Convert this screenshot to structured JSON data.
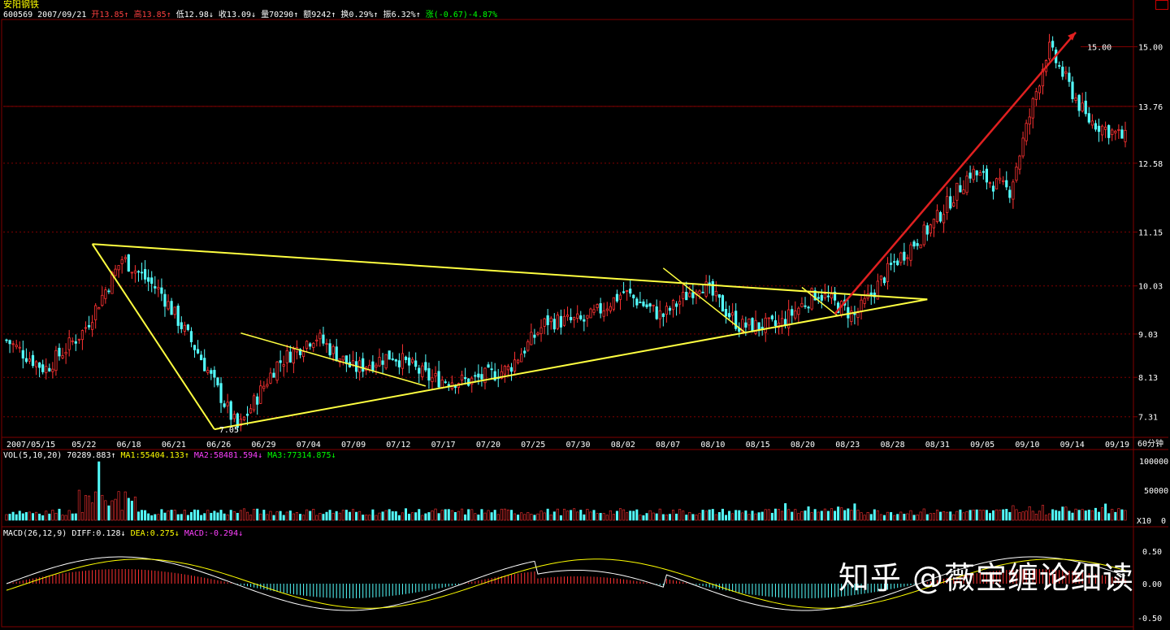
{
  "stock": {
    "name": "安阳钢铁",
    "code": "600569",
    "date": "2007/09/21",
    "open_label": "开",
    "open": "13.85",
    "high_label": "高",
    "high": "13.85",
    "low_label": "低",
    "low": "12.98",
    "close_label": "收",
    "close": "13.09",
    "vol_label": "量",
    "vol": "70290",
    "amount_label": "额",
    "amount": "9242",
    "turnover_label": "换",
    "turnover": "0.29%",
    "amplitude_label": "振",
    "amplitude": "6.32%",
    "change_label": "涨",
    "change": "(-0.67)-4.87%"
  },
  "volume_panel": {
    "label": "VOL(5,10,20)",
    "value": "70289.883",
    "ma1_label": "MA1:",
    "ma1": "55404.133",
    "ma2_label": "MA2:",
    "ma2": "58481.594",
    "ma3_label": "MA3:",
    "ma3": "77314.875",
    "unit": "X10",
    "ticks": [
      "100000",
      "50000",
      "0"
    ]
  },
  "macd_panel": {
    "label": "MACD(26,12,9)",
    "diff_label": "DIFF:",
    "diff": "0.128",
    "dea_label": "DEA:",
    "dea": "0.275",
    "macd_label": "MACD:",
    "macd": "-0.294",
    "ticks": [
      "0.50",
      "0.00",
      "-0.50"
    ]
  },
  "watermark": "知乎 @薇宝缠论细读",
  "colors": {
    "up": "#ff3232",
    "down": "#54ffff",
    "grid": "#800000",
    "trendline": "#ffff40",
    "uptrend_arrow": "#e02020",
    "ma1": "#ffffff",
    "ma2": "#ff40ff",
    "ma3": "#00ff00"
  },
  "chart_data": {
    "type": "candlestick",
    "period_label": "60分钟",
    "y_ticks": [
      "15.00",
      "13.76",
      "12.58",
      "11.15",
      "10.03",
      "9.03",
      "8.13",
      "7.31"
    ],
    "ylim": [
      6.9,
      15.6
    ],
    "x_ticks": [
      "2007/05/15",
      "05/22",
      "06/18",
      "06/21",
      "06/26",
      "06/29",
      "07/04",
      "07/09",
      "07/12",
      "07/17",
      "07/20",
      "07/25",
      "07/30",
      "08/02",
      "08/07",
      "08/10",
      "08/15",
      "08/20",
      "08/23",
      "08/28",
      "08/31",
      "09/05",
      "09/10",
      "09/14",
      "09/19"
    ],
    "annotations": [
      {
        "text": "7.05",
        "value": 7.05
      },
      {
        "text": "15.00",
        "value": 15.0
      }
    ],
    "close_path": [
      {
        "t": "2007/05/15",
        "v": 8.9
      },
      {
        "t": "05/15",
        "v": 8.3
      },
      {
        "t": "05/22",
        "v": 9.1
      },
      {
        "t": "05/22",
        "v": 10.6
      },
      {
        "t": "06/18",
        "v": 9.9
      },
      {
        "t": "06/21",
        "v": 8.6
      },
      {
        "t": "06/26",
        "v": 7.05
      },
      {
        "t": "06/26",
        "v": 8.4
      },
      {
        "t": "06/29",
        "v": 9.0
      },
      {
        "t": "07/04",
        "v": 8.3
      },
      {
        "t": "07/09",
        "v": 8.6
      },
      {
        "t": "07/12",
        "v": 8.1
      },
      {
        "t": "07/17",
        "v": 8.05
      },
      {
        "t": "07/20",
        "v": 8.3
      },
      {
        "t": "07/20",
        "v": 9.3
      },
      {
        "t": "07/25",
        "v": 9.3
      },
      {
        "t": "07/30",
        "v": 9.9
      },
      {
        "t": "08/02",
        "v": 9.4
      },
      {
        "t": "08/07",
        "v": 10.1
      },
      {
        "t": "08/10",
        "v": 9.2
      },
      {
        "t": "08/15",
        "v": 9.2
      },
      {
        "t": "08/20",
        "v": 9.9
      },
      {
        "t": "08/23",
        "v": 9.4
      },
      {
        "t": "08/28",
        "v": 10.5
      },
      {
        "t": "08/31",
        "v": 11.3
      },
      {
        "t": "09/05",
        "v": 12.4
      },
      {
        "t": "09/10",
        "v": 12.0
      },
      {
        "t": "09/14",
        "v": 15.0
      },
      {
        "t": "09/19",
        "v": 13.5
      },
      {
        "t": "09/21",
        "v": 13.09
      }
    ]
  }
}
